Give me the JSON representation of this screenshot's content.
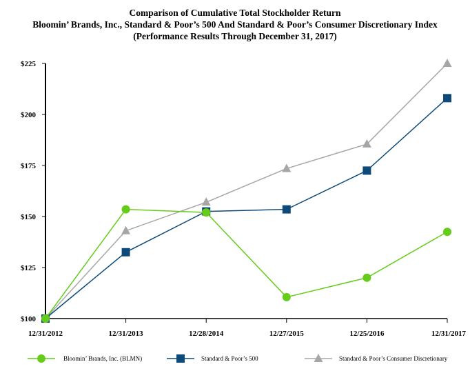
{
  "chart_data": {
    "type": "line",
    "title": [
      "Comparison of Cumulative Total Stockholder Return",
      "Bloomin’ Brands, Inc., Standard & Poor’s 500 And Standard & Poor’s Consumer Discretionary Index",
      "(Performance Results Through December 31, 2017)"
    ],
    "xlabel": "",
    "ylabel": "",
    "categories": [
      "12/31/2012",
      "12/31/2013",
      "12/28/2014",
      "12/27/2015",
      "12/25/2016",
      "12/31/2017"
    ],
    "ylim": [
      100,
      225
    ],
    "yticks": [
      100,
      125,
      150,
      175,
      200,
      225
    ],
    "ytick_labels": [
      "$100",
      "$125",
      "$150",
      "$175",
      "$200",
      "$225"
    ],
    "grid": false,
    "legend_position": "bottom",
    "series": [
      {
        "name": "Bloomin’ Brands, Inc. (BLMN)",
        "marker": "circle",
        "color": "#66cc1a",
        "values": [
          100,
          153.5,
          152,
          110.5,
          120,
          142.5
        ]
      },
      {
        "name": "Standard & Poor’s 500",
        "marker": "square",
        "color": "#0d4a7a",
        "values": [
          100,
          132.5,
          152.5,
          153.5,
          172.5,
          208
        ]
      },
      {
        "name": "Standard & Poor’s Consumer Discretionary",
        "marker": "triangle",
        "color": "#a6a6a6",
        "values": [
          100,
          143,
          157,
          173.5,
          185.5,
          225
        ]
      }
    ]
  }
}
